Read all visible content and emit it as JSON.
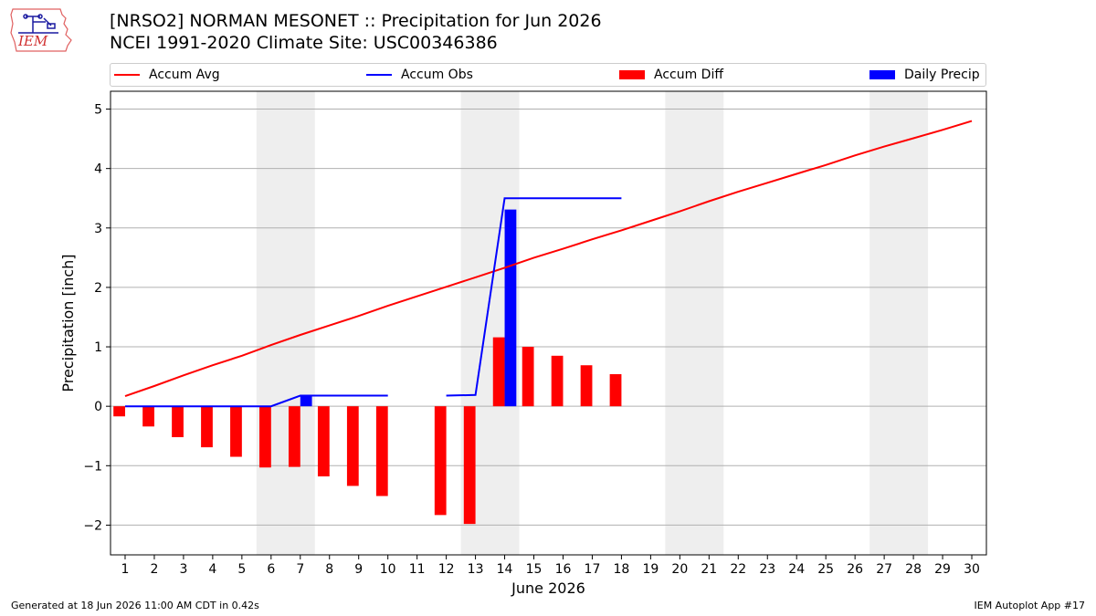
{
  "header": {
    "title_line1": "[NRSO2] NORMAN MESONET :: Precipitation for Jun 2026",
    "title_line2": "NCEI 1991-2020 Climate Site: USC00346386",
    "logo_text": "IEM"
  },
  "legend": {
    "placement": "top",
    "items": [
      {
        "label": "Accum Avg",
        "kind": "line",
        "color": "#ff0000"
      },
      {
        "label": "Accum Obs",
        "kind": "line",
        "color": "#0000ff"
      },
      {
        "label": "Accum Diff",
        "kind": "box",
        "color": "#ff0000"
      },
      {
        "label": "Daily Precip",
        "kind": "box",
        "color": "#0000ff"
      }
    ]
  },
  "footer": {
    "left": "Generated at 18 Jun 2026 11:00 AM CDT in 0.42s",
    "right": "IEM Autoplot App #17"
  },
  "chart_data": {
    "type": "bar",
    "xlabel": "June 2026",
    "ylabel": "Precipitation [inch]",
    "xlim": [
      0.5,
      30.5
    ],
    "ylim": [
      -2.5,
      5.3
    ],
    "x_ticks": [
      1,
      2,
      3,
      4,
      5,
      6,
      7,
      8,
      9,
      10,
      11,
      12,
      13,
      14,
      15,
      16,
      17,
      18,
      19,
      20,
      21,
      22,
      23,
      24,
      25,
      26,
      27,
      28,
      29,
      30
    ],
    "y_ticks": [
      -2,
      -1,
      0,
      1,
      2,
      3,
      4,
      5
    ],
    "y_tick_labels": [
      "−2",
      "−1",
      "0",
      "1",
      "2",
      "3",
      "4",
      "5"
    ],
    "grid": "horizontal",
    "weekend_shading": [
      [
        5.5,
        7.5
      ],
      [
        12.5,
        14.5
      ],
      [
        19.5,
        21.5
      ],
      [
        26.5,
        28.5
      ]
    ],
    "shade_color": "#eeeeee",
    "series": [
      {
        "name": "Accum Avg",
        "type": "line",
        "color": "#ff0000",
        "x": [
          1,
          2,
          3,
          4,
          5,
          6,
          7,
          8,
          9,
          10,
          11,
          12,
          13,
          14,
          15,
          16,
          17,
          18,
          19,
          20,
          21,
          22,
          23,
          24,
          25,
          26,
          27,
          28,
          29,
          30
        ],
        "values": [
          0.17,
          0.34,
          0.52,
          0.69,
          0.85,
          1.03,
          1.2,
          1.36,
          1.52,
          1.69,
          1.85,
          2.01,
          2.17,
          2.33,
          2.5,
          2.65,
          2.81,
          2.96,
          3.12,
          3.28,
          3.45,
          3.61,
          3.76,
          3.91,
          4.06,
          4.22,
          4.37,
          4.51,
          4.65,
          4.8
        ]
      },
      {
        "name": "Accum Obs",
        "type": "line",
        "color": "#0000ff",
        "x": [
          1,
          2,
          3,
          4,
          5,
          6,
          7,
          8,
          9,
          10,
          11,
          12,
          13,
          14,
          15,
          16,
          17,
          18
        ],
        "values": [
          0,
          0,
          0,
          0,
          0,
          0,
          0.18,
          0.18,
          0.18,
          0.18,
          null,
          0.18,
          0.19,
          3.5,
          3.5,
          3.5,
          3.5,
          3.5
        ]
      },
      {
        "name": "Accum Diff",
        "type": "bar",
        "color": "#ff0000",
        "x": [
          1,
          2,
          3,
          4,
          5,
          6,
          7,
          8,
          9,
          10,
          11,
          12,
          13,
          14,
          15,
          16,
          17,
          18
        ],
        "values": [
          -0.17,
          -0.34,
          -0.52,
          -0.69,
          -0.85,
          -1.03,
          -1.02,
          -1.18,
          -1.34,
          -1.51,
          null,
          -1.83,
          -1.98,
          1.16,
          1.0,
          0.85,
          0.69,
          0.54
        ]
      },
      {
        "name": "Daily Precip",
        "type": "bar",
        "color": "#0000ff",
        "x": [
          7,
          14
        ],
        "values": [
          0.18,
          3.31
        ]
      }
    ]
  }
}
